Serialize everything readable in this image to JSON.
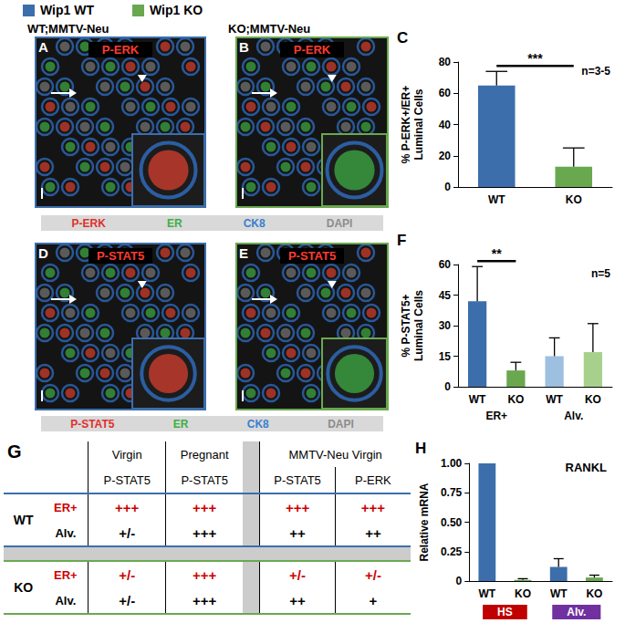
{
  "figure_legend": [
    {
      "name": "Wip1 WT",
      "color": "#3c6eab"
    },
    {
      "name": "Wip1 KO",
      "color": "#6aa84f"
    }
  ],
  "images": [
    {
      "panel": "A",
      "title": "WT;MMTV-Neu",
      "stain": "P-ERK",
      "frame_color": "#3c6eab"
    },
    {
      "panel": "B",
      "title": "KO;MMTV-Neu",
      "stain": "P-ERK",
      "frame_color": "#6aa84f"
    },
    {
      "panel": "D",
      "stain": "P-STAT5",
      "frame_color": "#3c6eab"
    },
    {
      "panel": "E",
      "stain": "P-STAT5",
      "frame_color": "#6aa84f"
    }
  ],
  "stain_keys": [
    [
      {
        "text": "P-ERK",
        "color": "#e0302a"
      },
      {
        "text": "ER",
        "color": "#3cb043"
      },
      {
        "text": "CK8",
        "color": "#3a7fd0"
      },
      {
        "text": "DAPI",
        "color": "#8c8c8c"
      }
    ],
    [
      {
        "text": "P-STAT5",
        "color": "#e0302a"
      },
      {
        "text": "ER",
        "color": "#3cb043"
      },
      {
        "text": "CK8",
        "color": "#3a7fd0"
      },
      {
        "text": "DAPI",
        "color": "#8c8c8c"
      }
    ]
  ],
  "table": {
    "panel": "G",
    "columns": [
      {
        "group": "Virgin",
        "stain": "P-STAT5"
      },
      {
        "group": "Pregnant",
        "stain": "P-STAT5"
      },
      {
        "group": "MMTV-Neu Virgin",
        "stain": "P-STAT5"
      },
      {
        "group": "MMTV-Neu Virgin",
        "stain": "P-ERK"
      }
    ],
    "genotypes": [
      {
        "name": "WT",
        "color": "#3c6eab",
        "rows": [
          {
            "cell": "ER+",
            "color": "#cc0000",
            "values": [
              "+++",
              "+++",
              "+++",
              "+++"
            ]
          },
          {
            "cell": "Alv.",
            "color": "#000000",
            "values": [
              "+/-",
              "+++",
              "++",
              "++"
            ]
          }
        ]
      },
      {
        "name": "KO",
        "color": "#6aa84f",
        "rows": [
          {
            "cell": "ER+",
            "color": "#cc0000",
            "values": [
              "+/-",
              "+++",
              "+/-",
              "+/-"
            ]
          },
          {
            "cell": "Alv.",
            "color": "#000000",
            "values": [
              "+/-",
              "+++",
              "++",
              "+"
            ]
          }
        ]
      }
    ]
  },
  "chart_data": [
    {
      "panel_label": "C",
      "type": "bar",
      "ylabel": "% P-ERK+/ER+\nLuminal Cells",
      "categories": [
        "WT",
        "KO"
      ],
      "values": [
        65,
        13
      ],
      "errors": [
        9,
        12
      ],
      "colors": [
        "#3c6eab",
        "#6aa84f"
      ],
      "ylim": [
        0,
        80
      ],
      "yticks": [
        0,
        20,
        40,
        60,
        80
      ],
      "grid": false,
      "significance": "***",
      "n_label": "n=3-5"
    },
    {
      "panel_label": "F",
      "type": "bar",
      "ylabel": "% P-STAT5+\nLuminal Cells",
      "categories": [
        "WT",
        "KO",
        "WT",
        "KO"
      ],
      "groups": [
        "ER+",
        "Alv."
      ],
      "values": [
        42,
        8,
        15,
        17
      ],
      "errors": [
        17,
        4,
        9,
        14
      ],
      "colors": [
        "#3c6eab",
        "#6aa84f",
        "#9dbfe0",
        "#a8d08d"
      ],
      "ylim": [
        0,
        60
      ],
      "yticks": [
        0,
        15,
        30,
        45,
        60
      ],
      "grid": false,
      "significance": "**",
      "n_label": "n=5"
    },
    {
      "panel_label": "H",
      "type": "bar",
      "title": "RANKL",
      "ylabel": "Relative mRNA",
      "categories": [
        "WT",
        "KO",
        "WT",
        "KO"
      ],
      "groups": [
        {
          "name": "HS",
          "color": "#c00000"
        },
        {
          "name": "Alv.",
          "color": "#7030a0"
        }
      ],
      "values": [
        1.0,
        0.01,
        0.12,
        0.03
      ],
      "errors": [
        0,
        0.01,
        0.07,
        0.02
      ],
      "colors": [
        "#3c6eab",
        "#6aa84f",
        "#3c6eab",
        "#6aa84f"
      ],
      "ylim": [
        0,
        1
      ],
      "yticks": [
        0,
        0.25,
        {
          "value": 0.5,
          "label": "0.50"
        },
        0.75,
        {
          "value": 1,
          "label": "1.00"
        }
      ],
      "grid": false
    }
  ]
}
